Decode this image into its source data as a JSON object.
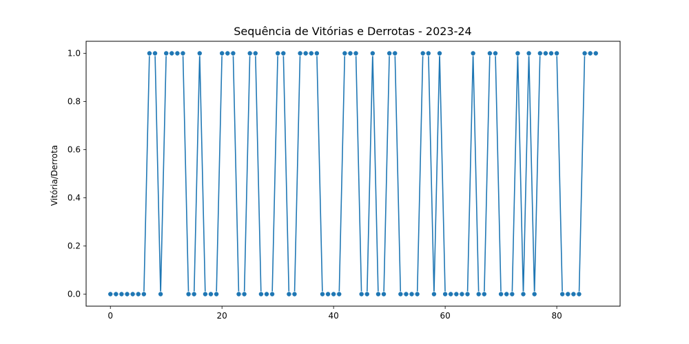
{
  "chart_data": {
    "type": "line",
    "title": "Sequência de Vitórias e Derrotas - 2023-24",
    "xlabel": "",
    "ylabel": "Vitória/Derrota",
    "xlim": [
      -4.35,
      91.35
    ],
    "ylim": [
      -0.05,
      1.05
    ],
    "xticks": [
      0,
      20,
      40,
      60,
      80
    ],
    "xtick_labels": [
      "0",
      "20",
      "40",
      "60",
      "80"
    ],
    "yticks": [
      0.0,
      0.2,
      0.4,
      0.6,
      0.8,
      1.0
    ],
    "ytick_labels": [
      "0.0",
      "0.2",
      "0.4",
      "0.6",
      "0.8",
      "1.0"
    ],
    "grid": false,
    "marker": "circle",
    "series": [
      {
        "color": "#1f77b4",
        "x": [
          0,
          1,
          2,
          3,
          4,
          5,
          6,
          7,
          8,
          9,
          10,
          11,
          12,
          13,
          14,
          15,
          16,
          17,
          18,
          19,
          20,
          21,
          22,
          23,
          24,
          25,
          26,
          27,
          28,
          29,
          30,
          31,
          32,
          33,
          34,
          35,
          36,
          37,
          38,
          39,
          40,
          41,
          42,
          43,
          44,
          45,
          46,
          47,
          48,
          49,
          50,
          51,
          52,
          53,
          54,
          55,
          56,
          57,
          58,
          59,
          60,
          61,
          62,
          63,
          64,
          65,
          66,
          67,
          68,
          69,
          70,
          71,
          72,
          73,
          74,
          75,
          76,
          77,
          78,
          79,
          80,
          81,
          82,
          83,
          84,
          85,
          86,
          87
        ],
        "values": [
          0,
          0,
          0,
          0,
          0,
          0,
          0,
          1,
          1,
          0,
          1,
          1,
          1,
          1,
          0,
          0,
          1,
          0,
          0,
          0,
          1,
          1,
          1,
          0,
          0,
          1,
          1,
          0,
          0,
          0,
          1,
          1,
          0,
          0,
          1,
          1,
          1,
          1,
          0,
          0,
          0,
          0,
          1,
          1,
          1,
          0,
          0,
          1,
          0,
          0,
          1,
          1,
          0,
          0,
          0,
          0,
          1,
          1,
          0,
          1,
          0,
          0,
          0,
          0,
          0,
          1,
          0,
          0,
          1,
          1,
          0,
          0,
          0,
          1,
          0,
          1,
          0,
          1,
          1,
          1,
          1,
          0,
          0,
          0,
          0,
          1,
          1,
          1
        ]
      }
    ]
  }
}
